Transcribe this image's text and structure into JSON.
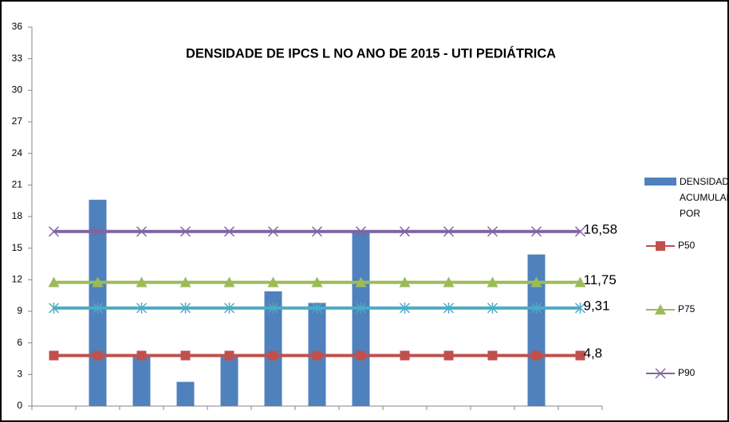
{
  "chart_data": {
    "type": "bar",
    "title": "DENSIDADE DE IPCS L NO ANO DE 2015 - UTI PEDIÁTRICA",
    "categories": [
      null,
      null,
      null,
      null,
      null,
      null,
      null,
      null,
      null,
      null,
      null,
      null,
      null
    ],
    "ylim": [
      0,
      36
    ],
    "yticks": [
      0,
      3,
      6,
      9,
      12,
      15,
      18,
      21,
      24,
      27,
      30,
      33,
      36
    ],
    "series": [
      {
        "name": "DENSIDADE ACUMULADA POR HOSPITA",
        "type": "bar",
        "color": "#4f81bd",
        "values": [
          null,
          19.6,
          4.7,
          2.3,
          4.7,
          10.9,
          9.8,
          16.5,
          null,
          null,
          null,
          14.4,
          null
        ]
      },
      {
        "name": "P50",
        "type": "line",
        "color": "#c0504d",
        "marker": "square",
        "values": [
          4.8,
          4.8,
          4.8,
          4.8,
          4.8,
          4.8,
          4.8,
          4.8,
          4.8,
          4.8,
          4.8,
          4.8,
          4.8
        ],
        "value_labels": [
          null,
          null,
          null,
          null,
          null,
          null,
          null,
          null,
          null,
          null,
          null,
          null,
          "4,8"
        ]
      },
      {
        "name": "P75",
        "type": "line",
        "color": "#9bbb59",
        "marker": "triangle",
        "values": [
          11.75,
          11.75,
          11.75,
          11.75,
          11.75,
          11.75,
          11.75,
          11.75,
          11.75,
          11.75,
          11.75,
          11.75,
          11.75
        ],
        "value_labels": [
          null,
          null,
          null,
          null,
          null,
          null,
          null,
          null,
          null,
          null,
          null,
          null,
          "11,75"
        ]
      },
      {
        "name": "P90",
        "type": "line",
        "color": "#8064a2",
        "marker": "x",
        "values": [
          16.58,
          16.58,
          16.58,
          16.58,
          16.58,
          16.58,
          16.58,
          16.58,
          16.58,
          16.58,
          16.58,
          16.58,
          16.58
        ],
        "value_labels": [
          null,
          null,
          null,
          null,
          null,
          null,
          null,
          null,
          null,
          null,
          null,
          null,
          "16,58"
        ]
      },
      {
        "type": "line",
        "color": "#4bacc6",
        "marker": "star",
        "values": [
          9.31,
          9.31,
          9.31,
          9.31,
          9.31,
          9.31,
          9.31,
          9.31,
          9.31,
          9.31,
          9.31,
          9.31,
          9.31
        ],
        "value_labels": [
          null,
          null,
          null,
          null,
          null,
          null,
          null,
          null,
          null,
          null,
          null,
          null,
          "9,31"
        ]
      }
    ]
  }
}
